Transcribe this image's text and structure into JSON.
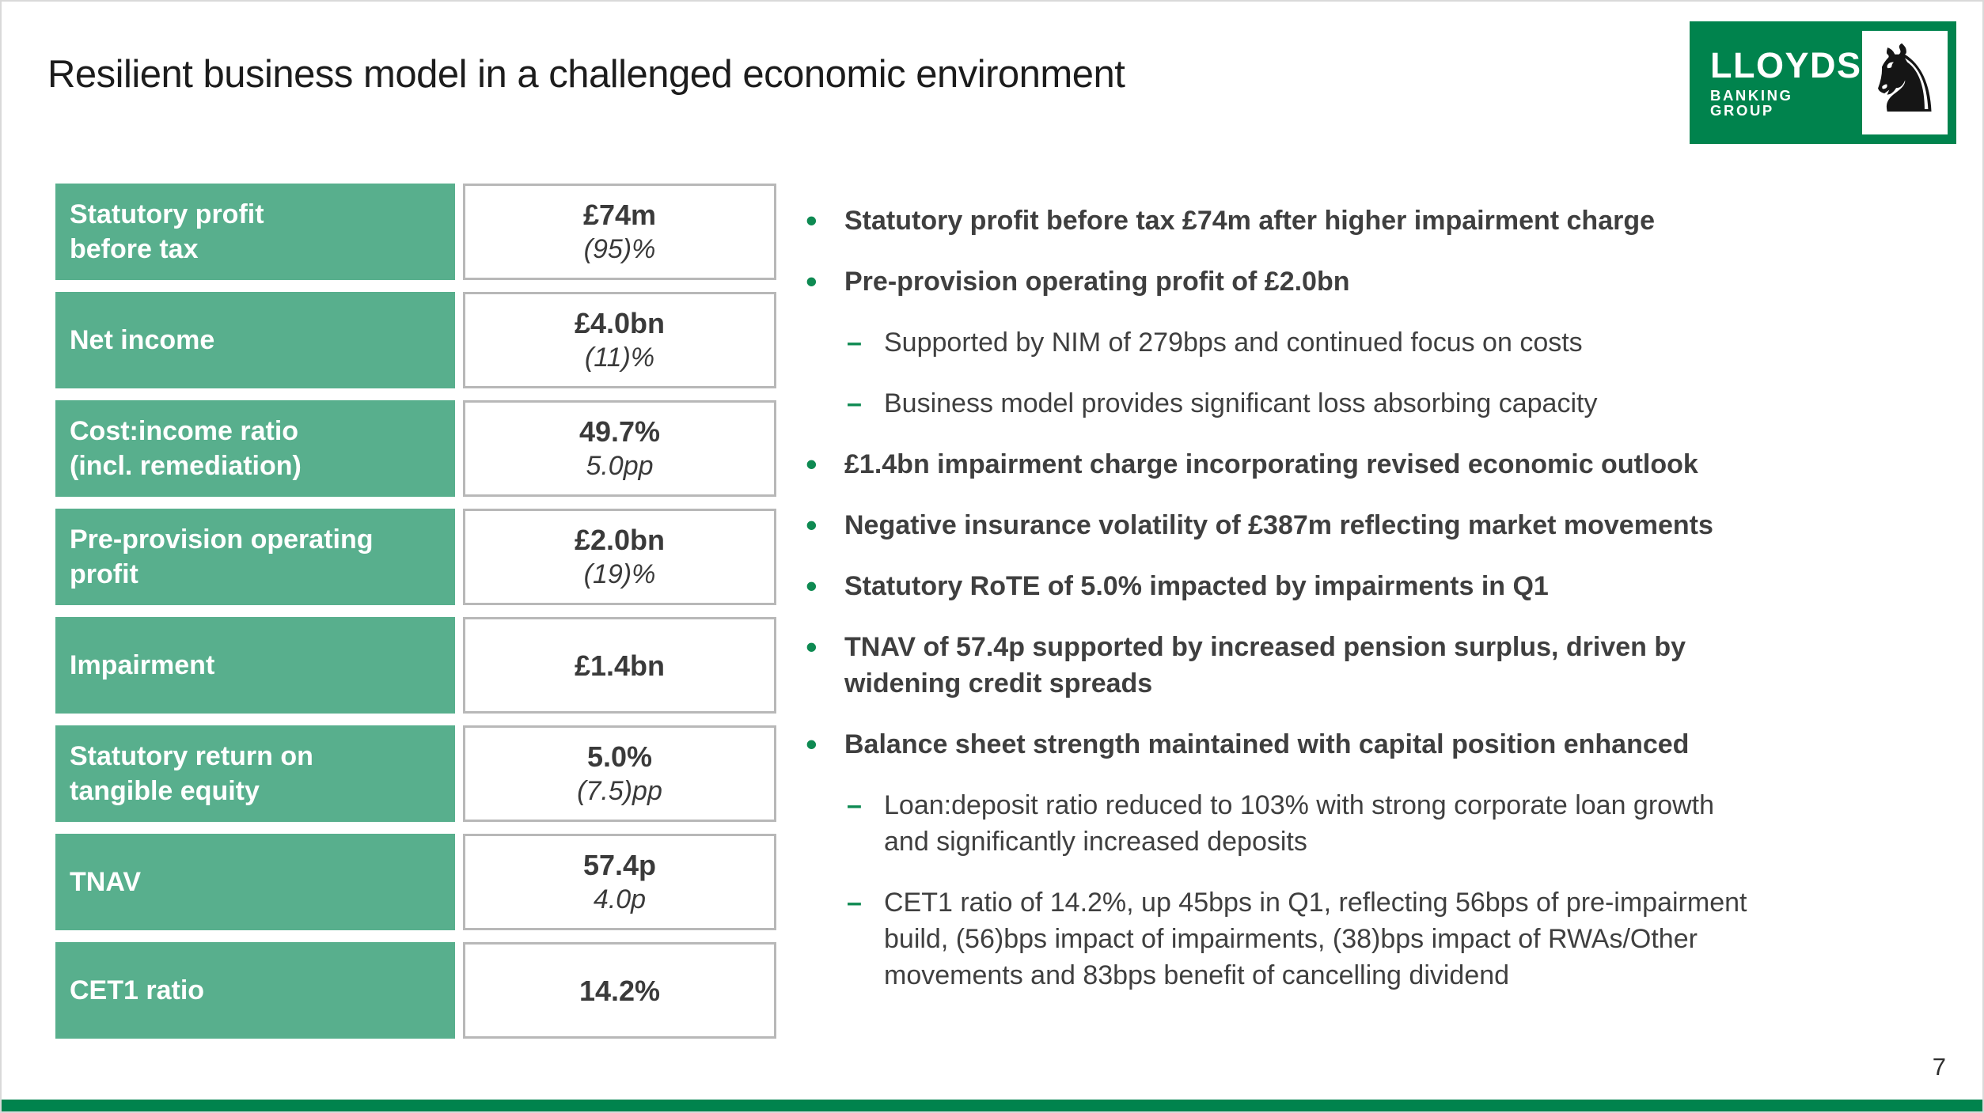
{
  "slide": {
    "title": "Resilient business model in a challenged economic environment",
    "page_number": "7",
    "colors": {
      "table_green": "#58AF8D",
      "brand_green": "#00834D",
      "marker_green": "#0E8A52",
      "value_border_gray": "#b8b8b8",
      "text_dark": "#3f3f3f"
    }
  },
  "logo": {
    "line1": "LLOYDS",
    "line2": "BANKING GROUP",
    "horse_glyph": "♞"
  },
  "markers": {
    "bullet": "•",
    "dash": "–"
  },
  "metrics_table": {
    "rows": [
      {
        "label": "Statutory profit\nbefore tax",
        "value": "£74m",
        "change": "(95)%"
      },
      {
        "label": "Net income",
        "value": "£4.0bn",
        "change": "(11)%"
      },
      {
        "label": "Cost:income ratio\n(incl. remediation)",
        "value": "49.7%",
        "change": "5.0pp"
      },
      {
        "label": "Pre-provision operating\nprofit",
        "value": "£2.0bn",
        "change": "(19)%"
      },
      {
        "label": "Impairment",
        "value": "£1.4bn",
        "change": ""
      },
      {
        "label": "Statutory return on\ntangible equity",
        "value": "5.0%",
        "change": "(7.5)pp"
      },
      {
        "label": "TNAV",
        "value": "57.4p",
        "change": "4.0p"
      },
      {
        "label": "CET1 ratio",
        "value": "14.2%",
        "change": ""
      }
    ]
  },
  "bullets": [
    {
      "level": 1,
      "text": "Statutory profit before tax £74m after higher impairment charge"
    },
    {
      "level": 1,
      "text": "Pre-provision operating profit of £2.0bn"
    },
    {
      "level": 2,
      "text": "Supported by NIM of 279bps and continued focus on costs"
    },
    {
      "level": 2,
      "text": "Business model provides significant loss absorbing capacity"
    },
    {
      "level": 1,
      "text": "£1.4bn impairment charge incorporating revised economic outlook"
    },
    {
      "level": 1,
      "text": "Negative insurance volatility of £387m reflecting market movements"
    },
    {
      "level": 1,
      "text": "Statutory RoTE of 5.0% impacted by impairments in Q1"
    },
    {
      "level": 1,
      "text": "TNAV of 57.4p supported by increased pension surplus, driven by\nwidening credit spreads"
    },
    {
      "level": 1,
      "text": "Balance sheet strength maintained with capital position enhanced"
    },
    {
      "level": 2,
      "text": "Loan:deposit ratio reduced to 103% with strong corporate loan growth\nand significantly increased deposits"
    },
    {
      "level": 2,
      "text": "CET1 ratio of 14.2%, up 45bps in Q1, reflecting 56bps of pre-impairment\nbuild, (56)bps impact of impairments, (38)bps impact of RWAs/Other\nmovements and 83bps benefit of cancelling dividend"
    }
  ]
}
